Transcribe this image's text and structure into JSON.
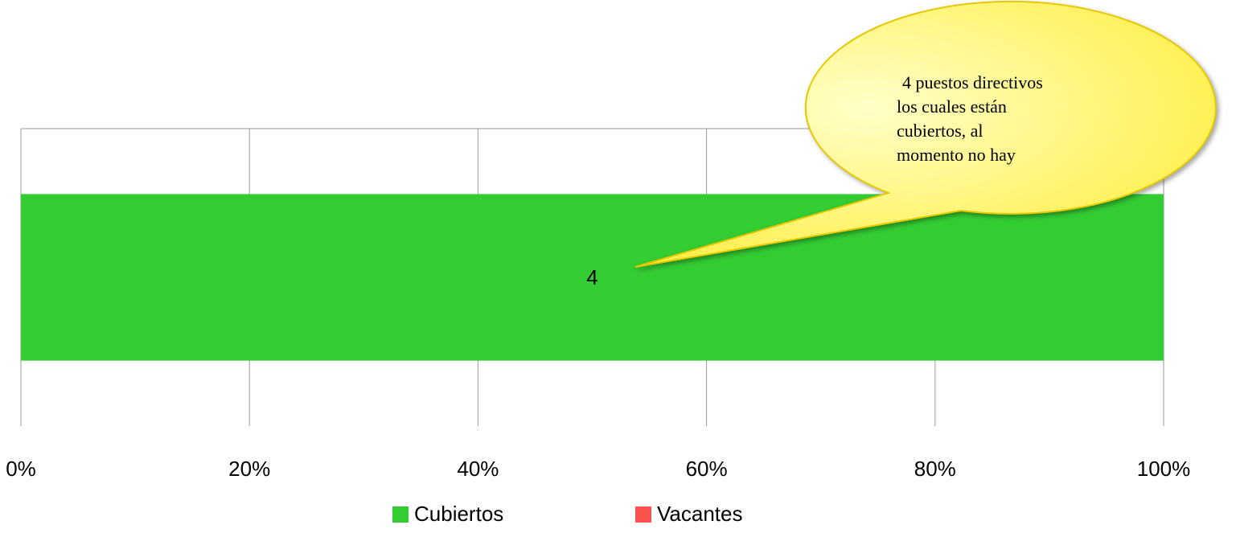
{
  "chart_data": {
    "type": "bar",
    "orientation": "horizontal",
    "stacking": "percent",
    "categories": [
      null
    ],
    "series": [
      {
        "name": "Cubiertos",
        "color": "#33cc33",
        "values": [
          4
        ]
      },
      {
        "name": "Vacantes",
        "color": "#ff5050",
        "values": [
          0
        ]
      }
    ],
    "xlim": [
      0,
      100
    ],
    "xticks": [
      {
        "value": 0,
        "label": "0%"
      },
      {
        "value": 20,
        "label": "20%"
      },
      {
        "value": 40,
        "label": "40%"
      },
      {
        "value": 60,
        "label": "60%"
      },
      {
        "value": 80,
        "label": "80%"
      },
      {
        "value": 100,
        "label": "100%"
      }
    ],
    "grid": true,
    "legend": "bottom",
    "annotation": {
      "lines": [
        "4 puestos directivos",
        "los cuales están",
        "cubiertos, al",
        "momento no hay"
      ]
    }
  }
}
